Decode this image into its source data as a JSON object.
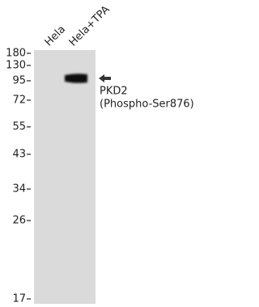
{
  "lanes": [
    "Hela",
    "Hela+TPA"
  ],
  "markers": [
    180,
    130,
    95,
    72,
    55,
    43,
    34,
    26,
    17
  ],
  "band_label": {
    "name": "PKD2",
    "site": "(Phospho-Ser876)"
  }
}
